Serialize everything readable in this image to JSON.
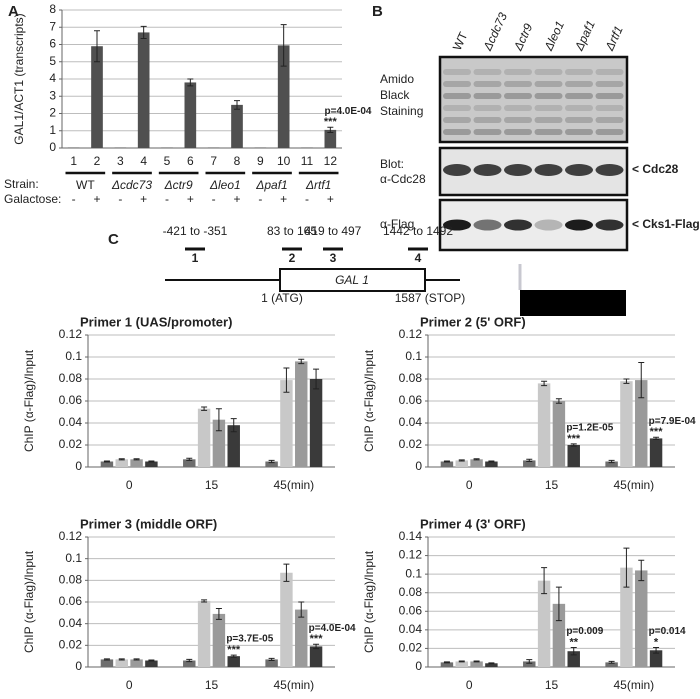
{
  "panel_labels": [
    "A",
    "B",
    "C"
  ],
  "blot": {
    "lanes": [
      "WT",
      "Δcdc73",
      "Δctr9",
      "Δleo1",
      "Δpaf1",
      "Δrtf1"
    ],
    "rows": [
      [
        "Amido",
        "Black",
        "Staining"
      ],
      [
        "Blot:",
        "α-Cdc28"
      ],
      [
        "α-Flag"
      ]
    ],
    "markers": [
      "< Cdc28",
      "< Cks1-Flag"
    ]
  },
  "gene_diagram": {
    "regions": [
      "-421 to -351",
      "83 to 165",
      "419 to 497",
      "1442 to 1492"
    ],
    "primers": [
      "1",
      "2",
      "3",
      "4"
    ],
    "gene": "GAL 1",
    "start": "1 (ATG)",
    "stop": "1587 (STOP)"
  },
  "chart_data": [
    {
      "type": "bar",
      "ylabel": "GAL1/ACT1 (transcripts)",
      "categories": [
        "1",
        "2",
        "3",
        "4",
        "5",
        "6",
        "7",
        "8",
        "9",
        "10",
        "11",
        "12"
      ],
      "values": [
        0.03,
        5.9,
        0.03,
        6.7,
        0.03,
        3.8,
        0.03,
        2.5,
        0.03,
        5.95,
        0.03,
        1.05
      ],
      "errors": [
        null,
        0.9,
        null,
        0.35,
        null,
        0.2,
        null,
        0.25,
        null,
        1.2,
        null,
        0.15
      ],
      "p_labels": [
        null,
        null,
        null,
        null,
        null,
        null,
        null,
        null,
        null,
        null,
        null,
        "p=4.0E-04"
      ],
      "stars": [
        null,
        null,
        null,
        null,
        null,
        null,
        null,
        null,
        null,
        null,
        null,
        "***"
      ],
      "color": "#505050",
      "ylim": [
        0,
        8
      ],
      "yticks": [
        0,
        1,
        2,
        3,
        4,
        5,
        6,
        7,
        8
      ],
      "grid": true,
      "strain_label": "Strain:",
      "strains": [
        "WT",
        "Δcdc73",
        "Δctr9",
        "Δleo1",
        "Δpaf1",
        "Δrtf1"
      ],
      "galactose_label": "Galactose:",
      "galactose": [
        "-",
        "+",
        "-",
        "+",
        "-",
        "+",
        "-",
        "+",
        "-",
        "+",
        "-",
        "+"
      ]
    },
    {
      "type": "grouped_bar",
      "title": "Primer 1 (UAS/promoter)",
      "ylabel": "ChIP (α-Flag)/Input",
      "categories": [
        "0",
        "15",
        "45(min)"
      ],
      "ylim": [
        0,
        0.12
      ],
      "yticks": [
        0,
        0.02,
        0.04,
        0.06,
        0.08,
        0.1,
        0.12
      ],
      "grid": true,
      "series": [
        {
          "color": "#6e6e6e",
          "values": [
            0.005,
            0.007,
            0.005
          ],
          "errors": [
            0.0005,
            0.001,
            0.001
          ]
        },
        {
          "color": "#c8c8c8",
          "values": [
            0.007,
            0.053,
            0.079
          ],
          "errors": [
            0.0005,
            0.0015,
            0.011
          ]
        },
        {
          "color": "#9a9a9a",
          "values": [
            0.007,
            0.043,
            0.096
          ],
          "errors": [
            0.0005,
            0.01,
            0.002
          ]
        },
        {
          "color": "#3a3a3a",
          "values": [
            0.005,
            0.038,
            0.08
          ],
          "errors": [
            0.0005,
            0.006,
            0.009
          ]
        }
      ]
    },
    {
      "type": "grouped_bar",
      "title": "Primer 2 (5' ORF)",
      "ylabel": "ChIP (α-Flag)/Input",
      "categories": [
        "0",
        "15",
        "45(min)"
      ],
      "ylim": [
        0,
        0.12
      ],
      "yticks": [
        0,
        0.02,
        0.04,
        0.06,
        0.08,
        0.1,
        0.12
      ],
      "grid": true,
      "series": [
        {
          "color": "#6e6e6e",
          "values": [
            0.005,
            0.006,
            0.005
          ],
          "errors": [
            0.0005,
            0.001,
            0.001
          ]
        },
        {
          "color": "#c8c8c8",
          "values": [
            0.006,
            0.076,
            0.078
          ],
          "errors": [
            0.0005,
            0.002,
            0.002
          ]
        },
        {
          "color": "#9a9a9a",
          "values": [
            0.007,
            0.06,
            0.079
          ],
          "errors": [
            0.0005,
            0.002,
            0.016
          ]
        },
        {
          "color": "#3a3a3a",
          "values": [
            0.005,
            0.02,
            0.026
          ],
          "errors": [
            0.0005,
            0.001,
            0.001
          ],
          "p_labels": [
            null,
            "p=1.2E-05",
            "p=7.9E-04"
          ],
          "stars": [
            null,
            "***",
            "***"
          ]
        }
      ]
    },
    {
      "type": "grouped_bar",
      "title": "Primer 3 (middle ORF)",
      "ylabel": "ChIP (α-Flag)/Input",
      "categories": [
        "0",
        "15",
        "45(min)"
      ],
      "ylim": [
        0,
        0.12
      ],
      "yticks": [
        0,
        0.02,
        0.04,
        0.06,
        0.08,
        0.1,
        0.12
      ],
      "grid": true,
      "series": [
        {
          "color": "#6e6e6e",
          "values": [
            0.007,
            0.006,
            0.007
          ],
          "errors": [
            0.0005,
            0.001,
            0.001
          ]
        },
        {
          "color": "#c8c8c8",
          "values": [
            0.007,
            0.061,
            0.087
          ],
          "errors": [
            0.0005,
            0.001,
            0.008
          ]
        },
        {
          "color": "#9a9a9a",
          "values": [
            0.007,
            0.049,
            0.053
          ],
          "errors": [
            0.0005,
            0.005,
            0.007
          ]
        },
        {
          "color": "#3a3a3a",
          "values": [
            0.006,
            0.01,
            0.019
          ],
          "errors": [
            0.0005,
            0.001,
            0.002
          ],
          "p_labels": [
            null,
            "p=3.7E-05",
            "p=4.0E-04"
          ],
          "stars": [
            null,
            "***",
            "***"
          ]
        }
      ]
    },
    {
      "type": "grouped_bar",
      "title": "Primer 4 (3' ORF)",
      "ylabel": "ChIP (α-Flag)/Input",
      "categories": [
        "0",
        "15",
        "45(min)"
      ],
      "ylim": [
        0,
        0.14
      ],
      "yticks": [
        0,
        0.02,
        0.04,
        0.06,
        0.08,
        0.1,
        0.12,
        0.14
      ],
      "grid": true,
      "series": [
        {
          "color": "#6e6e6e",
          "values": [
            0.005,
            0.006,
            0.005
          ],
          "errors": [
            0.0005,
            0.002,
            0.001
          ]
        },
        {
          "color": "#c8c8c8",
          "values": [
            0.006,
            0.093,
            0.107
          ],
          "errors": [
            0.0005,
            0.014,
            0.021
          ]
        },
        {
          "color": "#9a9a9a",
          "values": [
            0.006,
            0.068,
            0.104
          ],
          "errors": [
            0.0005,
            0.018,
            0.011
          ]
        },
        {
          "color": "#3a3a3a",
          "values": [
            0.004,
            0.017,
            0.018
          ],
          "errors": [
            0.0005,
            0.004,
            0.003
          ],
          "p_labels": [
            null,
            "p=0.009",
            "p=0.014"
          ],
          "stars": [
            null,
            "**",
            "*"
          ]
        }
      ]
    }
  ]
}
